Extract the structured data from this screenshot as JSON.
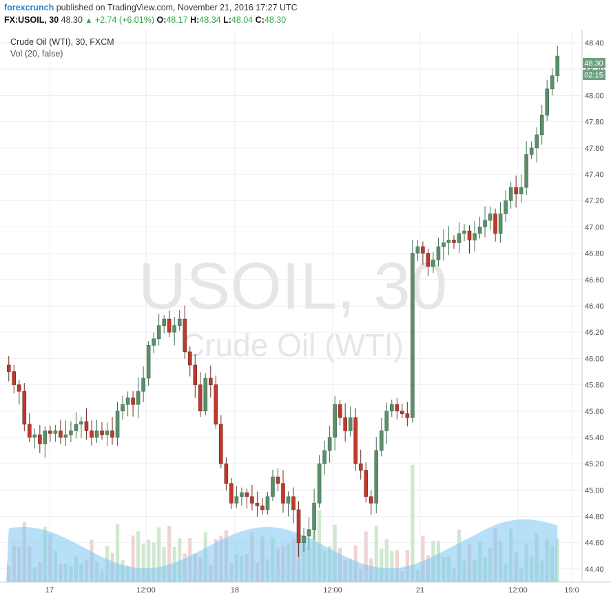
{
  "header": {
    "author": "forexcrunch",
    "published_text": "published on TradingView.com, November 21, 2016 17:27 UTC",
    "symbol": "FX:USOIL, 30",
    "last": "48.30",
    "change_icon": "up-triangle",
    "change": "+2.74 (+6.01%)",
    "open_label": "O:",
    "open": "48.17",
    "high_label": "H:",
    "high": "48.34",
    "low_label": "L:",
    "low": "48.04",
    "close_label": "C:",
    "close": "48.30"
  },
  "legend": {
    "title": "Crude Oil (WTI), 30, FXCM",
    "volume_label": "Vol (20, false)"
  },
  "watermark": {
    "line1": "USOIL, 30",
    "line2": "Crude Oil (WTI)"
  },
  "price_tag": {
    "price": "48.30",
    "countdown": "02:15"
  },
  "colors": {
    "up_body": "#5a8f6a",
    "up_wick": "#3d6b4c",
    "down_body": "#c0392b",
    "down_wick": "#6a2a22",
    "vol_up": "#cfe8cf",
    "vol_down": "#f0d4d4",
    "vol_ma": "#7cc4f2",
    "grid": "#ebedf0",
    "tag_bg": "#6da080"
  },
  "chart_data": {
    "type": "candlestick",
    "symbol": "FX:USOIL",
    "interval": "30",
    "ylim": [
      44.3,
      48.5
    ],
    "y_ticks": [
      "44.40",
      "44.60",
      "44.80",
      "45.00",
      "45.20",
      "45.40",
      "45.60",
      "45.80",
      "46.00",
      "46.20",
      "46.40",
      "46.60",
      "46.80",
      "47.00",
      "47.20",
      "47.40",
      "47.60",
      "47.80",
      "48.00",
      "48.20",
      "48.40"
    ],
    "x_ticks": [
      "17",
      "12:00",
      "18",
      "12:00",
      "21",
      "12:00",
      "19:0"
    ],
    "close_series": [
      45.9,
      45.8,
      45.75,
      45.5,
      45.4,
      45.42,
      45.35,
      45.45,
      45.43,
      45.45,
      45.4,
      45.42,
      45.45,
      45.5,
      45.52,
      45.45,
      45.4,
      45.45,
      45.42,
      45.45,
      45.4,
      45.6,
      45.65,
      45.7,
      45.65,
      45.75,
      45.85,
      46.1,
      46.15,
      46.25,
      46.3,
      46.2,
      46.25,
      46.3,
      46.05,
      45.95,
      45.8,
      45.6,
      45.85,
      45.8,
      45.5,
      45.2,
      45.05,
      44.9,
      44.95,
      44.98,
      44.95,
      44.9,
      44.88,
      44.85,
      44.95,
      45.1,
      45.05,
      44.9,
      44.95,
      44.85,
      44.6,
      44.65,
      44.7,
      44.9,
      45.2,
      45.3,
      45.4,
      45.65,
      45.55,
      45.45,
      45.55,
      45.2,
      45.15,
      44.95,
      44.9,
      45.3,
      45.45,
      45.6,
      45.65,
      45.6,
      45.58,
      45.55,
      46.8,
      46.85,
      46.8,
      46.7,
      46.75,
      46.85,
      46.88,
      46.9,
      46.88,
      46.95,
      46.97,
      46.9,
      46.95,
      47.0,
      47.05,
      47.1,
      46.95,
      47.1,
      47.2,
      47.3,
      47.25,
      47.3,
      47.55,
      47.6,
      47.7,
      47.85,
      48.05,
      48.15,
      48.3
    ]
  }
}
